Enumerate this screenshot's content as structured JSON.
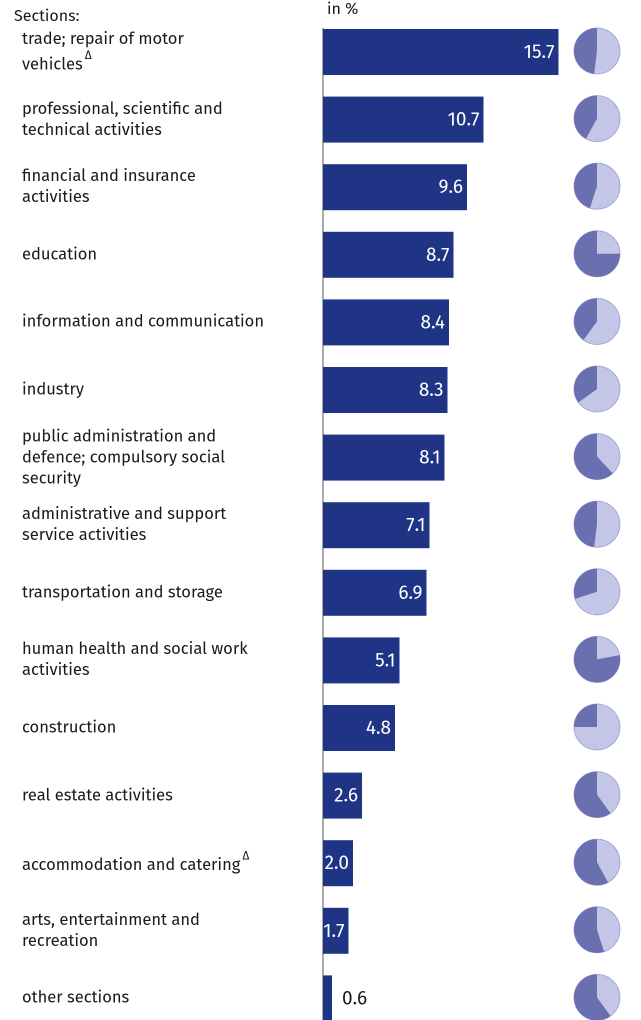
{
  "chart_data": {
    "type": "bar",
    "orientation": "horizontal",
    "category_axis_title": "Sections:",
    "value_axis_title": "in %",
    "categories": [
      "trade; repair of motor\nvehicles",
      "professional, scientific and\ntechnical activities",
      "financial and insurance\nactivities",
      "education",
      "information and communication",
      "industry",
      "public administration and\ndefence; compulsory social\nsecurity",
      "administrative and support\nservice activities",
      "transportation and storage",
      "human health and social work\nactivities",
      "construction",
      "real estate activities",
      "accommodation and catering",
      "arts, entertainment and\nrecreation",
      "other sections"
    ],
    "category_marks": [
      "Δ",
      null,
      null,
      null,
      null,
      null,
      null,
      null,
      null,
      null,
      null,
      null,
      "Δ",
      null,
      null
    ],
    "values": [
      15.7,
      10.7,
      9.6,
      8.7,
      8.4,
      8.3,
      8.1,
      7.1,
      6.9,
      5.1,
      4.8,
      2.6,
      2.0,
      1.7,
      0.6
    ],
    "value_labels": [
      "15.7",
      "10.7",
      "9.6",
      "8.7",
      "8.4",
      "8.3",
      "8.1",
      "7.1",
      "6.9",
      "5.1",
      "4.8",
      "2.6",
      "2.0",
      "1.7",
      "0.6"
    ],
    "color": "#1f3485",
    "xlim": [
      0,
      16
    ],
    "pie_values": [
      48,
      42,
      45,
      75,
      40,
      35,
      62,
      48,
      30,
      78,
      25,
      60,
      58,
      55,
      60
    ],
    "pie_colors": [
      "#6a6fb0",
      "#c3c6e6"
    ]
  }
}
